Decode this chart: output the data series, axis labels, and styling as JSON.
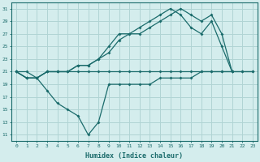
{
  "xlabel": "Humidex (Indice chaleur)",
  "bg_color": "#d4eded",
  "grid_color": "#b0d4d4",
  "line_color": "#1a6b6b",
  "xlim": [
    -0.5,
    23.5
  ],
  "ylim": [
    10,
    32
  ],
  "xticks": [
    0,
    1,
    2,
    3,
    4,
    5,
    6,
    7,
    8,
    9,
    10,
    11,
    12,
    13,
    14,
    15,
    16,
    17,
    18,
    19,
    20,
    21,
    22,
    23
  ],
  "yticks": [
    11,
    13,
    15,
    17,
    19,
    21,
    23,
    25,
    27,
    29,
    31
  ],
  "series": [
    {
      "x": [
        0,
        1,
        2,
        3,
        4,
        5,
        6,
        7,
        8,
        9,
        10,
        11,
        12,
        13,
        14,
        15,
        16,
        17,
        18,
        19,
        20,
        21,
        22,
        23
      ],
      "y": [
        21,
        20,
        20,
        21,
        21,
        21,
        21,
        21,
        21,
        21,
        21,
        21,
        21,
        21,
        21,
        21,
        21,
        21,
        21,
        21,
        21,
        21,
        21,
        21
      ]
    },
    {
      "x": [
        0,
        1,
        2,
        3,
        4,
        5,
        6,
        7,
        8,
        9,
        10,
        11,
        12,
        13,
        14,
        15,
        16,
        17,
        18,
        19,
        20,
        21
      ],
      "y": [
        21,
        20,
        20,
        21,
        21,
        21,
        22,
        22,
        23,
        24,
        26,
        27,
        27,
        28,
        29,
        30,
        31,
        30,
        29,
        30,
        27,
        21
      ]
    },
    {
      "x": [
        0,
        1,
        2,
        3,
        4,
        5,
        6,
        7,
        8,
        9,
        10,
        11,
        12,
        13,
        14,
        15,
        16,
        17,
        18,
        19,
        20,
        21
      ],
      "y": [
        21,
        20,
        20,
        21,
        21,
        21,
        22,
        22,
        23,
        25,
        27,
        27,
        28,
        29,
        30,
        31,
        30,
        28,
        27,
        29,
        25,
        21
      ]
    },
    {
      "x": [
        0,
        1,
        2,
        3,
        4,
        5,
        6,
        7,
        8,
        9,
        10,
        11,
        12,
        13,
        14,
        15,
        16,
        17,
        18,
        19,
        20,
        21,
        22,
        23
      ],
      "y": [
        21,
        21,
        20,
        18,
        16,
        15,
        14,
        11,
        13,
        19,
        19,
        19,
        19,
        19,
        20,
        20,
        20,
        20,
        21,
        21,
        21,
        21,
        21,
        21
      ]
    }
  ]
}
